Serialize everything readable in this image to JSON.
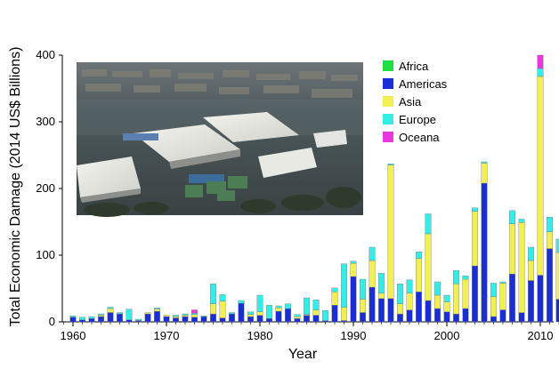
{
  "chart_data": {
    "type": "bar",
    "stacked": true,
    "ylabel": "Total Economic Damage (2014 US$ Billions)",
    "xlabel": "Year",
    "ylim": [
      0,
      400
    ],
    "xlim": [
      1959,
      2014
    ],
    "yticks": [
      0,
      100,
      200,
      300,
      400
    ],
    "xticks": [
      1960,
      1970,
      1980,
      1990,
      2000,
      2010
    ],
    "grid": false,
    "legend_position": "top-right",
    "inset": "aerial photograph of a flooded industrial estate",
    "x": [
      1960,
      1961,
      1962,
      1963,
      1964,
      1965,
      1966,
      1967,
      1968,
      1969,
      1970,
      1971,
      1972,
      1973,
      1974,
      1975,
      1976,
      1977,
      1978,
      1979,
      1980,
      1981,
      1982,
      1983,
      1984,
      1985,
      1986,
      1987,
      1988,
      1989,
      1990,
      1991,
      1992,
      1993,
      1994,
      1995,
      1996,
      1997,
      1998,
      1999,
      2000,
      2001,
      2002,
      2003,
      2004,
      2005,
      2006,
      2007,
      2008,
      2009,
      2010,
      2011,
      2012
    ],
    "series": [
      {
        "name": "Africa",
        "color": "#22dd44",
        "values": [
          0,
          0,
          0,
          0,
          0,
          0,
          0,
          0,
          0,
          0,
          0,
          0,
          0,
          0,
          0,
          0,
          0,
          0,
          0,
          0,
          0,
          0,
          0,
          0,
          0,
          0,
          0,
          0,
          0,
          0,
          0,
          0,
          0,
          0,
          0,
          0,
          0,
          0,
          0,
          0,
          0,
          0,
          0,
          0,
          0,
          0,
          0,
          0,
          0,
          0,
          0,
          0,
          0
        ]
      },
      {
        "name": "Americas",
        "color": "#1a2ed6",
        "values": [
          7,
          3,
          5,
          8,
          14,
          12,
          3,
          2,
          12,
          16,
          8,
          6,
          8,
          7,
          8,
          12,
          6,
          12,
          28,
          8,
          10,
          5,
          16,
          20,
          5,
          10,
          10,
          2,
          25,
          2,
          68,
          14,
          52,
          35,
          35,
          12,
          18,
          45,
          32,
          20,
          15,
          12,
          20,
          84,
          208,
          8,
          18,
          72,
          14,
          62,
          70,
          110,
          34
        ]
      },
      {
        "name": "Asia",
        "color": "#f2ef55",
        "values": [
          0,
          0,
          0,
          2,
          6,
          0,
          0,
          0,
          2,
          3,
          2,
          2,
          2,
          4,
          0,
          15,
          25,
          0,
          0,
          3,
          5,
          0,
          5,
          0,
          3,
          1,
          8,
          0,
          20,
          20,
          20,
          20,
          40,
          8,
          200,
          15,
          25,
          50,
          100,
          20,
          15,
          45,
          44,
          82,
          30,
          30,
          40,
          75,
          135,
          30,
          298,
          25,
          70
        ]
      },
      {
        "name": "Europe",
        "color": "#34ece8",
        "values": [
          2,
          4,
          3,
          2,
          2,
          2,
          16,
          2,
          0,
          2,
          0,
          2,
          2,
          2,
          1,
          30,
          10,
          2,
          4,
          4,
          25,
          20,
          3,
          7,
          3,
          25,
          15,
          15,
          6,
          65,
          3,
          30,
          20,
          30,
          2,
          30,
          20,
          10,
          30,
          20,
          10,
          20,
          5,
          5,
          2,
          20,
          2,
          20,
          5,
          20,
          12,
          22,
          20
        ]
      },
      {
        "name": "Oceana",
        "color": "#ea36df",
        "values": [
          0,
          0,
          0,
          0,
          0,
          0,
          0,
          0,
          0,
          0,
          0,
          0,
          0,
          5,
          0,
          0,
          0,
          0,
          0,
          0,
          0,
          0,
          0,
          0,
          0,
          0,
          0,
          0,
          0,
          0,
          0,
          0,
          0,
          0,
          0,
          0,
          0,
          0,
          0,
          0,
          0,
          0,
          0,
          0,
          0,
          0,
          0,
          0,
          0,
          0,
          20,
          0,
          0
        ]
      }
    ]
  }
}
